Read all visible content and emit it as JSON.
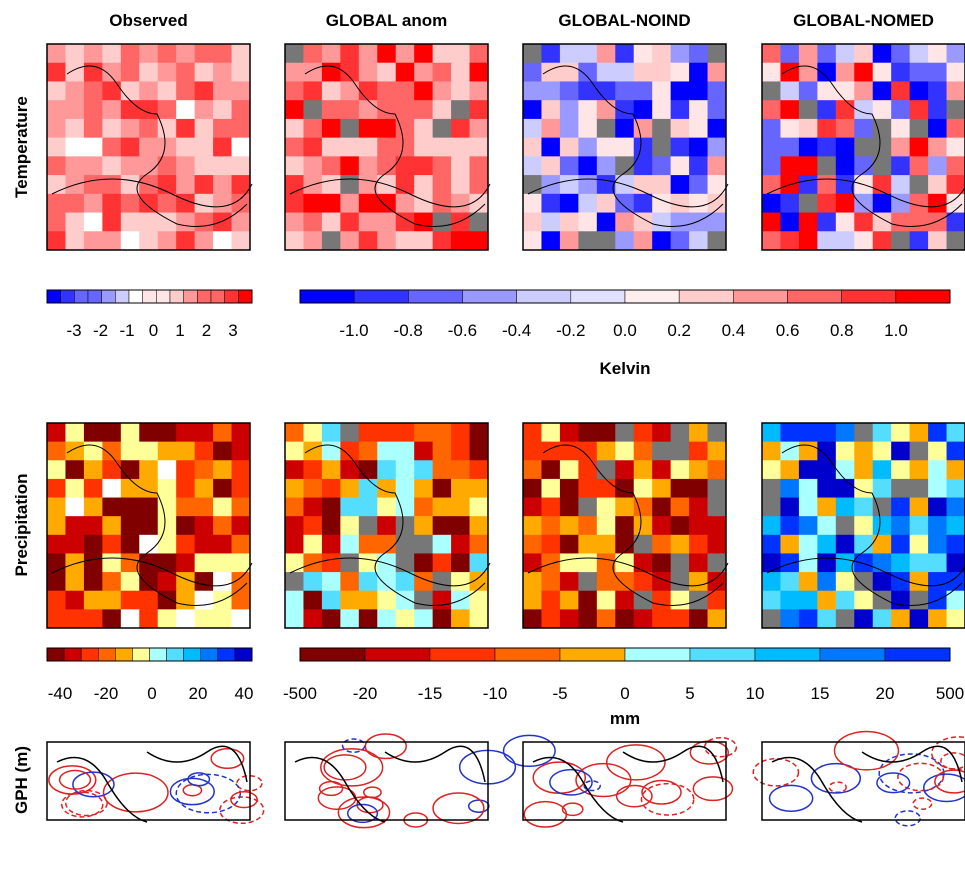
{
  "columns": [
    "Observed",
    "GLOBAL anom",
    "GLOBAL-NOIND",
    "GLOBAL-NOMED"
  ],
  "rows": [
    "Temperature",
    "Precipitation",
    "GPH (m)"
  ],
  "temperature_colorbars": {
    "observed_ticks": [
      "-3",
      "-2",
      "-1",
      "0",
      "1",
      "2",
      "3"
    ],
    "model_ticks": [
      "-1.0",
      "-0.8",
      "-0.6",
      "-0.4",
      "-0.2",
      "0.0",
      "0.2",
      "0.4",
      "0.6",
      "0.8",
      "1.0"
    ],
    "unit": "Kelvin"
  },
  "precipitation_colorbars": {
    "observed_ticks": [
      "-40",
      "-20",
      "0",
      "20",
      "40"
    ],
    "model_ticks": [
      "-500",
      "-20",
      "-15",
      "-10",
      "-5",
      "0",
      "5",
      "10",
      "15",
      "20",
      "500"
    ],
    "unit": "mm"
  }
}
